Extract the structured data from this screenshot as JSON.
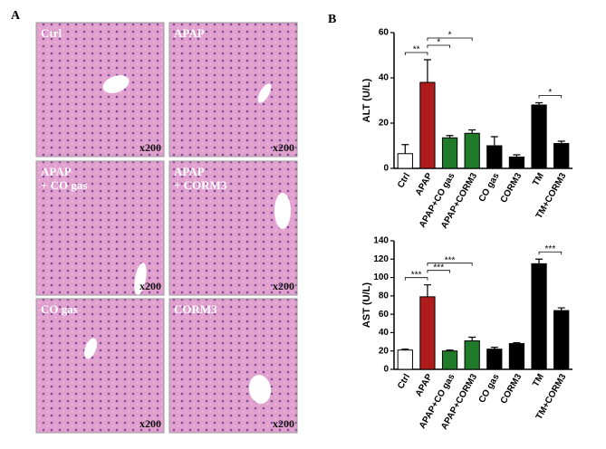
{
  "panel_a": {
    "label": "A",
    "images": [
      {
        "label": [
          "Ctrl"
        ],
        "magnification": "x200"
      },
      {
        "label": [
          "APAP"
        ],
        "magnification": "x200"
      },
      {
        "label": [
          "APAP",
          "+ CO gas"
        ],
        "magnification": "x200"
      },
      {
        "label": [
          "APAP",
          "+ CORM3"
        ],
        "magnification": "x200"
      },
      {
        "label": [
          "CO gas"
        ],
        "magnification": "x200"
      },
      {
        "label": [
          "CORM3"
        ],
        "magnification": "x200"
      }
    ]
  },
  "panel_b": {
    "label": "B"
  },
  "chart_data": [
    {
      "type": "bar",
      "ylabel": "ALT (U/L)",
      "categories": [
        "Ctrl",
        "APAP",
        "APAP+CO gas",
        "APAP+CORM3",
        "CO gas",
        "CORM3",
        "TM",
        "TM+CORM3"
      ],
      "values": [
        6.5,
        38,
        13.5,
        15.5,
        10,
        5,
        28,
        11
      ],
      "errors": [
        4,
        10,
        1,
        1.5,
        4,
        1,
        1,
        1
      ],
      "colors": [
        "#ffffff",
        "#b01c1c",
        "#1f7a2a",
        "#1f7a2a",
        "#000000",
        "#000000",
        "#000000",
        "#000000"
      ],
      "ylim": [
        0,
        60
      ],
      "yticks": [
        0,
        20,
        40,
        60
      ],
      "significance": [
        {
          "from": 0,
          "to": 1,
          "label": "**"
        },
        {
          "from": 1,
          "to": 2,
          "label": "*"
        },
        {
          "from": 1,
          "to": 3,
          "label": "*"
        },
        {
          "from": 6,
          "to": 7,
          "label": "*"
        }
      ]
    },
    {
      "type": "bar",
      "ylabel": "AST (U/L)",
      "categories": [
        "Ctrl",
        "APAP",
        "APAP+CO gas",
        "APAP+CORM3",
        "CO gas",
        "CORM3",
        "TM",
        "TM+CORM3"
      ],
      "values": [
        21,
        79,
        20,
        31,
        22,
        28,
        115,
        64
      ],
      "errors": [
        1,
        13,
        1,
        4,
        2,
        1,
        5,
        3
      ],
      "colors": [
        "#ffffff",
        "#b01c1c",
        "#1f7a2a",
        "#1f7a2a",
        "#000000",
        "#000000",
        "#000000",
        "#000000"
      ],
      "ylim": [
        0,
        140
      ],
      "yticks": [
        0,
        20,
        40,
        60,
        80,
        100,
        120,
        140
      ],
      "significance": [
        {
          "from": 0,
          "to": 1,
          "label": "***"
        },
        {
          "from": 1,
          "to": 2,
          "label": "***"
        },
        {
          "from": 1,
          "to": 3,
          "label": "***"
        },
        {
          "from": 6,
          "to": 7,
          "label": "***"
        }
      ]
    }
  ]
}
